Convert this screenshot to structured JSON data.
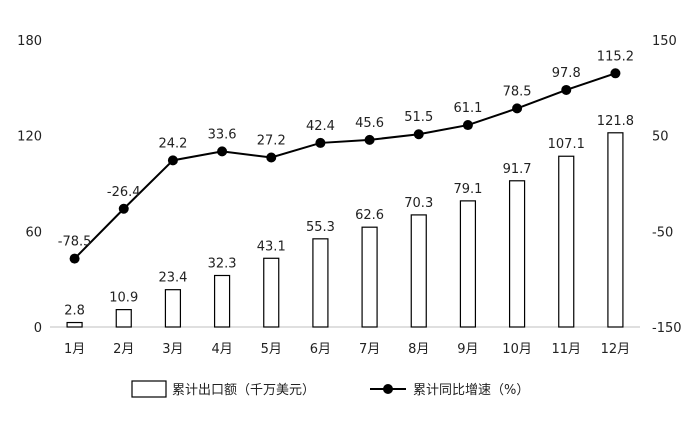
{
  "chart_data": {
    "type": "bar",
    "categories": [
      "1月",
      "2月",
      "3月",
      "4月",
      "5月",
      "6月",
      "7月",
      "8月",
      "9月",
      "10月",
      "11月",
      "12月"
    ],
    "series": [
      {
        "name": "累计出口额（千万美元）",
        "type": "bar",
        "axis": "left",
        "values": [
          2.8,
          10.9,
          23.4,
          32.3,
          43.1,
          55.3,
          62.6,
          70.3,
          79.1,
          91.7,
          107.1,
          121.8
        ],
        "labels": [
          "2.8",
          "10.9",
          "23.4",
          "32.3",
          "43.1",
          "55.3",
          "62.6",
          "70.3",
          "79.1",
          "91.7",
          "107.1",
          "121.8"
        ]
      },
      {
        "name": "累计同比增速（%）",
        "type": "line",
        "axis": "right",
        "values": [
          -78.5,
          -26.4,
          24.2,
          33.6,
          27.2,
          42.4,
          45.6,
          51.5,
          61.1,
          78.5,
          97.8,
          115.2
        ],
        "labels": [
          "-78.5",
          "-26.4",
          "24.2",
          "33.6",
          "27.2",
          "42.4",
          "45.6",
          "51.5",
          "61.1",
          "78.5",
          "97.8",
          "115.2"
        ]
      }
    ],
    "y_left": {
      "range": [
        0,
        180
      ],
      "ticks": [
        0,
        60,
        120,
        180
      ],
      "tick_labels": [
        "0",
        "60",
        "120",
        "180"
      ]
    },
    "y_right": {
      "range": [
        -150,
        150
      ],
      "ticks": [
        -150,
        -50,
        50,
        150
      ],
      "tick_labels": [
        "-150",
        "-50",
        "50",
        "150"
      ]
    },
    "grid": false,
    "legend": "bottom",
    "colors": {
      "bar_fill": "#ffffff",
      "bar_stroke": "#000000",
      "line": "#000000",
      "axis": "#bfbfbf"
    }
  }
}
